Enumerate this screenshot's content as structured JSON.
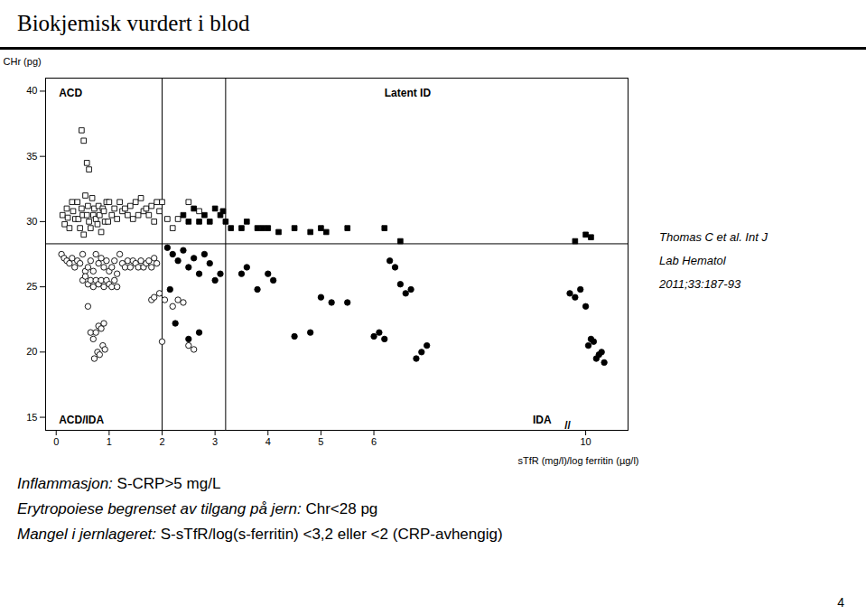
{
  "chart_data": {
    "type": "scatter",
    "title": "Biokjemisk vurdert i blod",
    "xlabel": "sTfR (mg/l)/log ferritin (µg/l)",
    "ylabel": "CHr (pg)",
    "xlim": [
      -0.2,
      10.8
    ],
    "ylim": [
      14.0,
      41.0
    ],
    "xticks": [
      0,
      1,
      2,
      3,
      4,
      5,
      6,
      10
    ],
    "yticks": [
      15,
      20,
      25,
      30,
      35,
      40
    ],
    "grid": false,
    "reference_lines": {
      "y": [
        28.3
      ],
      "x": [
        2.0,
        3.2
      ]
    },
    "series": [
      {
        "marker": "square",
        "color": "#ffffff",
        "x": [
          0.12,
          0.16,
          0.2,
          0.22,
          0.25,
          0.3,
          0.32,
          0.36,
          0.4,
          0.42,
          0.45,
          0.48,
          0.5,
          0.52,
          0.55,
          0.58,
          0.6,
          0.62,
          0.65,
          0.68,
          0.7,
          0.72,
          0.75,
          0.78,
          0.8,
          0.82,
          0.85,
          0.88,
          0.9,
          0.92,
          0.95,
          0.98,
          1.0,
          1.05,
          1.1,
          1.15,
          1.2,
          1.25,
          1.3,
          1.35,
          1.4,
          1.45,
          1.5,
          1.55,
          1.6,
          1.65,
          1.7,
          1.75,
          1.8,
          1.85,
          1.9,
          1.95,
          0.48,
          0.52,
          0.58,
          0.62,
          2.0,
          2.1,
          2.2,
          2.3,
          2.5,
          2.7
        ],
        "values": [
          30.5,
          29.8,
          31.0,
          30.3,
          29.5,
          31.5,
          30.8,
          30.2,
          31.5,
          30.2,
          29.5,
          31.0,
          30.5,
          29.0,
          32.0,
          30.5,
          31.2,
          30.0,
          29.5,
          31.8,
          30.5,
          31.0,
          30.2,
          29.8,
          31.2,
          30.5,
          29.2,
          31.0,
          30.8,
          30.0,
          31.5,
          30.0,
          31.5,
          30.5,
          31.0,
          30.2,
          31.5,
          30.8,
          31.0,
          30.5,
          31.2,
          30.2,
          31.5,
          30.5,
          31.8,
          30.8,
          31.0,
          30.5,
          31.2,
          30.0,
          31.5,
          30.8,
          37.0,
          36.2,
          34.5,
          34.0,
          31.5,
          30.2,
          29.5,
          30.2,
          31.5,
          30.8
        ]
      },
      {
        "marker": "square",
        "color": "#000000",
        "x": [
          2.4,
          2.5,
          2.6,
          2.7,
          2.8,
          2.9,
          3.0,
          3.1,
          3.15,
          3.2,
          3.3,
          3.5,
          3.6,
          3.8,
          3.9,
          4.0,
          4.2,
          4.5,
          4.8,
          5.0,
          5.1,
          5.5,
          6.2,
          6.5,
          9.8,
          10.0,
          10.1
        ],
        "values": [
          30.5,
          30.0,
          31.0,
          30.0,
          30.5,
          30.0,
          31.0,
          30.5,
          30.8,
          30.0,
          29.5,
          29.5,
          30.0,
          29.5,
          29.5,
          29.5,
          29.2,
          29.5,
          29.2,
          29.5,
          29.2,
          29.5,
          29.5,
          28.5,
          28.5,
          29.0,
          28.8
        ]
      },
      {
        "marker": "circle",
        "color": "#ffffff",
        "x": [
          0.1,
          0.15,
          0.2,
          0.25,
          0.3,
          0.35,
          0.4,
          0.45,
          0.5,
          0.55,
          0.6,
          0.65,
          0.7,
          0.75,
          0.8,
          0.85,
          0.9,
          0.95,
          1.0,
          1.05,
          1.1,
          1.15,
          1.2,
          1.25,
          1.3,
          1.35,
          1.4,
          1.45,
          1.5,
          1.55,
          1.6,
          1.65,
          1.7,
          1.75,
          1.8,
          1.85,
          1.9,
          0.5,
          0.55,
          0.6,
          0.65,
          0.7,
          0.75,
          0.8,
          0.85,
          0.9,
          0.95,
          1.0,
          1.05,
          1.1,
          1.15,
          0.6,
          0.65,
          0.7,
          0.75,
          0.8,
          0.85,
          0.9,
          0.72,
          0.78,
          0.82,
          0.88,
          0.92,
          1.8,
          1.85,
          1.95,
          2.05,
          2.2,
          2.3,
          2.4,
          2.5,
          2.6,
          2.0
        ],
        "values": [
          27.5,
          27.2,
          27.0,
          26.8,
          27.2,
          26.5,
          27.0,
          26.8,
          27.5,
          26.2,
          26.5,
          27.0,
          26.2,
          27.5,
          26.8,
          27.2,
          26.5,
          27.0,
          26.2,
          26.5,
          27.0,
          26.0,
          27.5,
          26.8,
          26.5,
          27.0,
          26.5,
          27.0,
          26.8,
          26.5,
          27.0,
          26.5,
          26.8,
          27.0,
          26.5,
          27.2,
          26.8,
          25.5,
          25.8,
          25.2,
          25.5,
          25.0,
          25.5,
          25.2,
          25.5,
          25.0,
          25.5,
          25.2,
          25.0,
          25.5,
          25.0,
          23.5,
          21.5,
          21.0,
          21.5,
          22.0,
          21.8,
          22.2,
          19.5,
          20.0,
          19.8,
          20.5,
          20.2,
          24.0,
          24.2,
          24.5,
          24.0,
          23.5,
          24.0,
          23.8,
          20.5,
          20.2,
          20.8
        ]
      },
      {
        "marker": "circle",
        "color": "#000000",
        "x": [
          2.1,
          2.2,
          2.3,
          2.4,
          2.5,
          2.6,
          2.7,
          2.8,
          2.9,
          3.0,
          3.1,
          2.15,
          2.25,
          2.5,
          2.7,
          3.5,
          3.6,
          3.8,
          4.0,
          4.1,
          4.5,
          4.8,
          5.0,
          5.2,
          5.5,
          6.0,
          6.1,
          6.2,
          6.3,
          6.4,
          6.5,
          6.6,
          6.7,
          6.8,
          6.9,
          7.0,
          9.7,
          9.8,
          9.9,
          10.0,
          10.05,
          10.1,
          10.15,
          10.2,
          10.25,
          10.3,
          10.35
        ],
        "values": [
          28.0,
          27.5,
          27.0,
          27.8,
          26.5,
          27.2,
          26.0,
          27.5,
          26.8,
          25.5,
          26.0,
          24.8,
          22.2,
          21.0,
          21.5,
          26.0,
          26.5,
          24.8,
          26.0,
          25.5,
          21.2,
          21.5,
          24.2,
          23.8,
          23.8,
          21.2,
          21.5,
          21.0,
          27.0,
          26.5,
          25.2,
          24.5,
          24.8,
          19.5,
          20.0,
          20.5,
          24.5,
          24.2,
          24.8,
          23.5,
          20.5,
          21.0,
          20.8,
          19.5,
          19.8,
          20.0,
          19.2
        ]
      }
    ],
    "annotations": [
      {
        "text": "ACD",
        "x": 0.05,
        "y": 40.2
      },
      {
        "text": "Latent ID",
        "x": 6.2,
        "y": 40.2
      },
      {
        "text": "ACD/IDA",
        "x": 0.05,
        "y": 14.5
      },
      {
        "text": "IDA",
        "x": 9.0,
        "y": 14.5
      },
      {
        "text": "//",
        "x": 9.6,
        "y": 14.1
      }
    ],
    "citation": [
      "Thomas C et al. Int J",
      "Lab Hematol",
      "2011;33:187-93"
    ],
    "bottom_text": [
      {
        "italic": "Inflammasjon:",
        "normal": " S-CRP>5 mg/L"
      },
      {
        "italic": "Erytropoiese begrenset av tilgang på jern:",
        "normal": " Chr<28 pg"
      },
      {
        "italic": "Mangel i jernlageret:",
        "normal": " S-sTfR/log(s-ferritin) <3,2 eller <2 (CRP-avhengig)"
      }
    ],
    "page_number": "4"
  }
}
